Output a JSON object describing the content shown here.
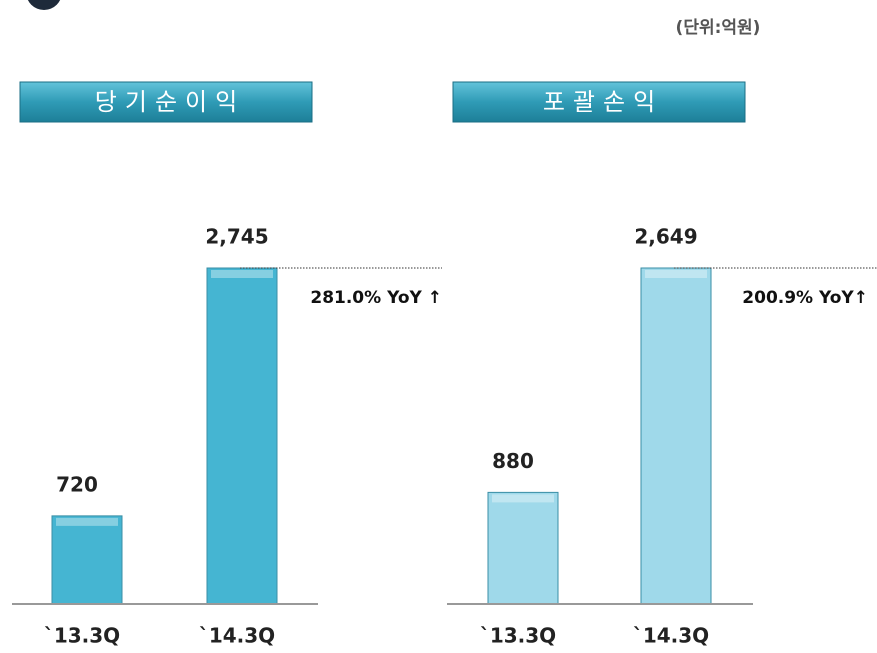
{
  "unit": "(단위:억원)",
  "chart_data": [
    {
      "type": "bar",
      "title": "당기순이익",
      "categories": [
        "`13.3Q",
        "`14.3Q"
      ],
      "values": [
        720,
        2745
      ],
      "value_labels": [
        "720",
        "2,745"
      ],
      "color": "#45b5d2",
      "annotation": "281.0% YoY ↑"
    },
    {
      "type": "bar",
      "title": "포괄손익",
      "categories": [
        "`13.3Q",
        "`14.3Q"
      ],
      "values": [
        880,
        2649
      ],
      "value_labels": [
        "880",
        "2,649"
      ],
      "color": "#9fd9ea",
      "annotation": "200.9% YoY↑"
    }
  ]
}
